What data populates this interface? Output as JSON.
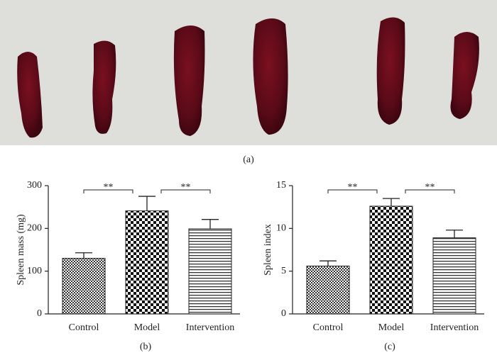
{
  "photo_caption": "(a)",
  "chart_data": [
    {
      "type": "bar",
      "caption": "(b)",
      "y_label": "Spleen mass (mg)",
      "categories": [
        "Control",
        "Model",
        "Intervention"
      ],
      "values": [
        130,
        241,
        199
      ],
      "errors": [
        13,
        34,
        22
      ],
      "ylim": [
        0,
        300
      ],
      "yticks": [
        0,
        100,
        200,
        300
      ],
      "annotations": [
        "**",
        "**"
      ]
    },
    {
      "type": "bar",
      "caption": "(c)",
      "y_label": "Spleen index",
      "categories": [
        "Control",
        "Model",
        "Intervention"
      ],
      "values": [
        5.6,
        12.6,
        8.9
      ],
      "errors": [
        0.6,
        0.9,
        0.9
      ],
      "ylim": [
        0,
        15
      ],
      "yticks": [
        0,
        5,
        10,
        15
      ],
      "annotations": [
        "**",
        "**"
      ]
    }
  ]
}
